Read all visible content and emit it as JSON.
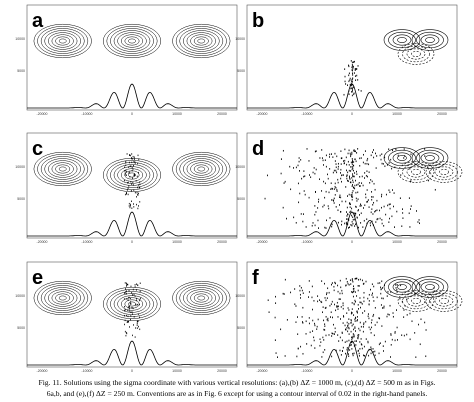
{
  "figure": {
    "panels": [
      {
        "label": "a"
      },
      {
        "label": "b"
      },
      {
        "label": "c"
      },
      {
        "label": "d"
      },
      {
        "label": "e"
      },
      {
        "label": "f"
      }
    ],
    "axes": {
      "y_ticks": [
        "10000",
        "5000"
      ],
      "x_ticks": [
        "-20000",
        "-10000",
        "0",
        "10000",
        "20000"
      ]
    },
    "caption": {
      "lines": [
        "Fig. 11. Solutions using the sigma coordinate with various vertical resolutions: (a),(b) ΔZ = 1000 m, (c),(d) ΔZ = 500 m as in Figs.",
        "6a,b, and (e),(f) ΔZ = 250 m. Conventions are as in Fig. 6 except for using a contour interval of 0.02 in the right-hand panels."
      ]
    }
  }
}
